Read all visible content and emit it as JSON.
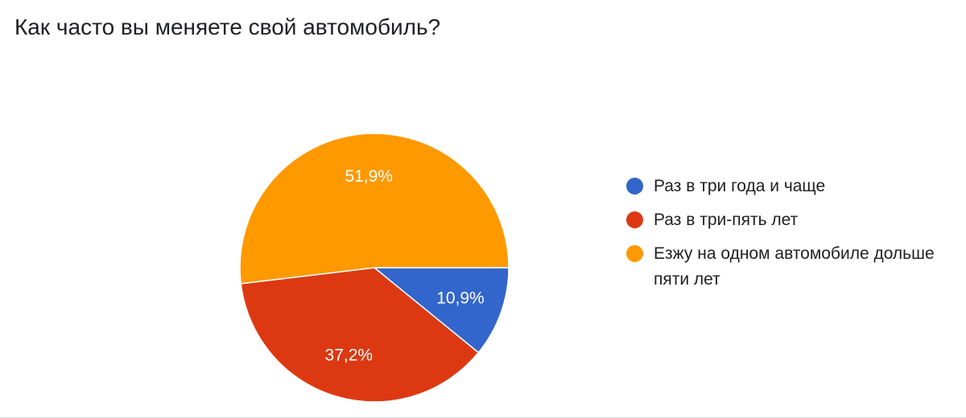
{
  "chart_data": {
    "type": "pie",
    "title": "Как часто вы меняете свой автомобиль?",
    "legend_position": "right",
    "slices": [
      {
        "label": "Раз в три года и чаще",
        "value": 10.9,
        "value_label": "10,9%",
        "color": "#3366cc"
      },
      {
        "label": "Раз в три-пять лет",
        "value": 37.2,
        "value_label": "37,2%",
        "color": "#dc3912"
      },
      {
        "label": "Езжу на одном автомобиле дольше пяти лет",
        "value": 51.9,
        "value_label": "51,9%",
        "color": "#ff9900"
      }
    ]
  }
}
